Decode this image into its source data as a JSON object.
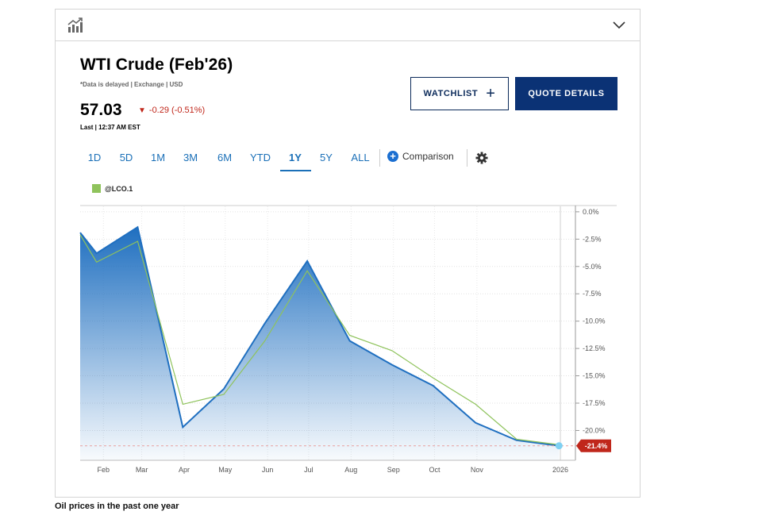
{
  "header": {
    "chart_icon": "bar-chart-up-icon",
    "collapse_icon": "chevron-down-icon"
  },
  "quote": {
    "title": "WTI Crude (Febʹ26)",
    "meta": "*Data is delayed | Exchange | USD",
    "price": "57.03",
    "change": "-0.29 (-0.51%)",
    "change_direction": "down",
    "last": "Last | 12:37 AM EST"
  },
  "buttons": {
    "watchlist": "WATCHLIST",
    "quote_details": "QUOTE DETAILS"
  },
  "ranges": [
    "1D",
    "5D",
    "1M",
    "3M",
    "6M",
    "YTD",
    "1Y",
    "5Y",
    "ALL"
  ],
  "active_range": "1Y",
  "comparison_label": "Comparison",
  "colors": {
    "main": "#1f6fc0",
    "compare": "#8fc35c",
    "badge": "#c0271b",
    "button": "#0b3275"
  },
  "chart_data": {
    "type": "area",
    "y_ticks": [
      "0.0%",
      "-2.5%",
      "-5.0%",
      "-7.5%",
      "-10.0%",
      "-12.5%",
      "-15.0%",
      "-17.5%",
      "-20.0%"
    ],
    "ylim": [
      -22.0,
      0.5
    ],
    "x_ticks": [
      "Feb",
      "Mar",
      "Apr",
      "May",
      "Jun",
      "Jul",
      "Aug",
      "Sep",
      "Oct",
      "Nov",
      "2026"
    ],
    "grid": true,
    "legend_position": "top-left",
    "series": [
      {
        "name": "WTI Crude (Febʹ26)",
        "style": "area",
        "values": [
          [
            "2025-01-15",
            -1.9
          ],
          [
            "2025-01-27",
            -3.8
          ],
          [
            "2025-02-26",
            -1.4
          ],
          [
            "2025-03-31",
            -19.7
          ],
          [
            "2025-04-30",
            -16.2
          ],
          [
            "2025-05-30",
            -10.2
          ],
          [
            "2025-06-30",
            -4.5
          ],
          [
            "2025-07-31",
            -11.8
          ],
          [
            "2025-08-31",
            -14.0
          ],
          [
            "2025-09-30",
            -15.9
          ],
          [
            "2025-10-31",
            -19.3
          ],
          [
            "2025-11-30",
            -20.9
          ],
          [
            "2025-12-31",
            -21.4
          ]
        ]
      },
      {
        "name": "@LCO.1",
        "style": "line",
        "values": [
          [
            "2025-01-15",
            -2.1
          ],
          [
            "2025-01-27",
            -4.6
          ],
          [
            "2025-02-26",
            -2.7
          ],
          [
            "2025-03-31",
            -17.6
          ],
          [
            "2025-04-30",
            -16.7
          ],
          [
            "2025-05-30",
            -11.8
          ],
          [
            "2025-06-30",
            -5.4
          ],
          [
            "2025-07-31",
            -11.3
          ],
          [
            "2025-08-31",
            -12.7
          ],
          [
            "2025-09-30",
            -15.2
          ],
          [
            "2025-10-31",
            -17.6
          ],
          [
            "2025-11-30",
            -20.8
          ],
          [
            "2025-12-31",
            -21.3
          ]
        ]
      }
    ],
    "last_value_label": "-21.4%",
    "caption": "Oil prices in the past one year"
  }
}
